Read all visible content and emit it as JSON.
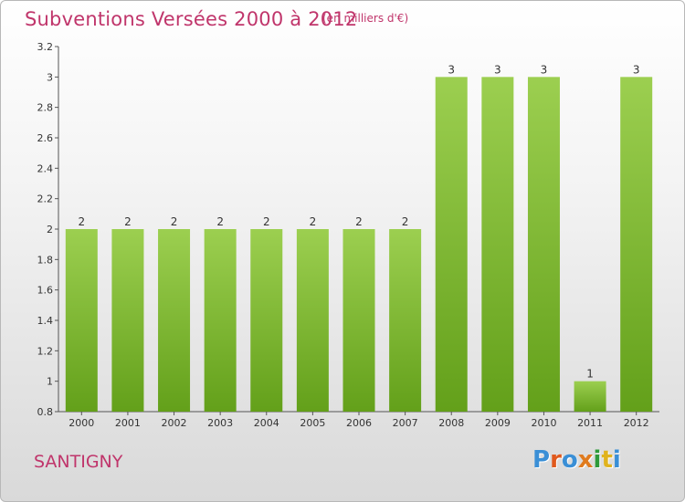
{
  "header": {
    "title": "Subventions Versées 2000 à 2012",
    "subtitle": "(en milliers d'€)"
  },
  "footer": {
    "commune": "SANTIGNY",
    "logo": {
      "text": "Proxiti",
      "letter_colors": [
        "#3a8fd6",
        "#e05a1e",
        "#3a8fd6",
        "#e07b1e",
        "#2e9a3a",
        "#e0b31e",
        "#3a8fd6"
      ]
    }
  },
  "chart_data": {
    "type": "bar",
    "categories": [
      "2000",
      "2001",
      "2002",
      "2003",
      "2004",
      "2005",
      "2006",
      "2007",
      "2008",
      "2009",
      "2010",
      "2011",
      "2012"
    ],
    "values": [
      2,
      2,
      2,
      2,
      2,
      2,
      2,
      2,
      3,
      3,
      3,
      1,
      3
    ],
    "data_labels": [
      "2",
      "2",
      "2",
      "2",
      "2",
      "2",
      "2",
      "2",
      "3",
      "3",
      "3",
      "1",
      "3"
    ],
    "y_ticks": [
      "0.8",
      "1",
      "1.2",
      "1.4",
      "1.6",
      "1.8",
      "2",
      "2.2",
      "2.4",
      "2.6",
      "2.8",
      "3",
      "3.2"
    ],
    "ylim": [
      0.8,
      3.2
    ],
    "grid": false,
    "colors": {
      "bar_light": "#9ccf50",
      "bar_dark": "#63a01a",
      "text": "#c0356b"
    }
  }
}
